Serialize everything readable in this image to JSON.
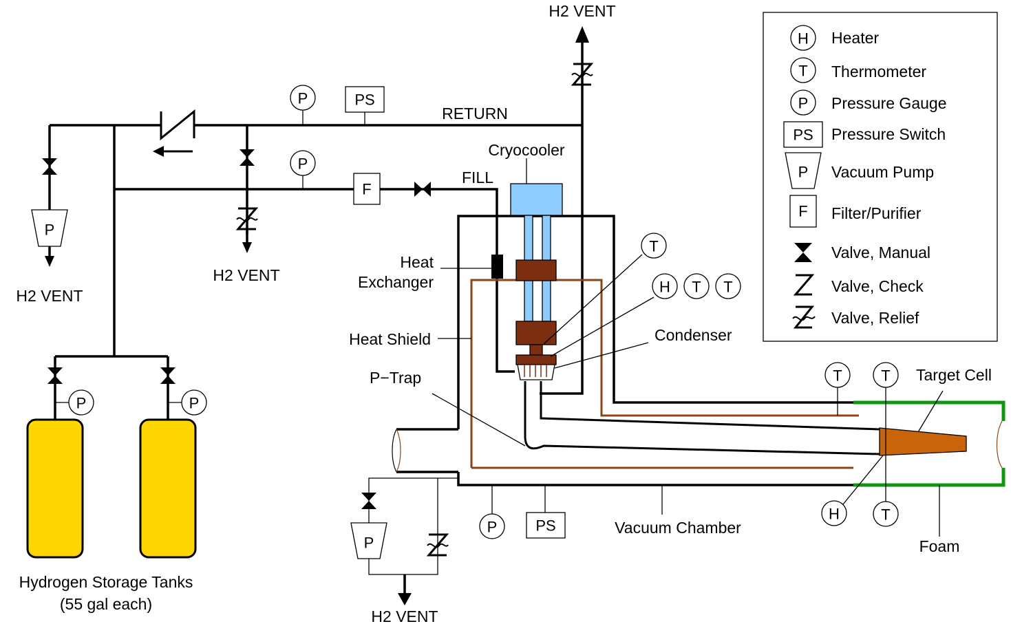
{
  "colors": {
    "tank": "#FFD700",
    "cryocooler": "#8ECCFF",
    "cryo_block": "#7B2E10",
    "shield": "#8B4513",
    "target_cell": "#C8640A",
    "foam": "#129612"
  },
  "labels": {
    "h2_vent_top": "H2 VENT",
    "h2_vent_left": "H2 VENT",
    "h2_vent_mid": "H2 VENT",
    "h2_vent_bottom": "H2 VENT",
    "return": "RETURN",
    "fill": "FILL",
    "cryocooler": "Cryocooler",
    "heat": "Heat",
    "exchanger": "Exchanger",
    "heat_shield": "Heat Shield",
    "condenser": "Condenser",
    "ptrap": "P−Trap",
    "target_cell": "Target Cell",
    "vacuum_chamber": "Vacuum Chamber",
    "foam": "Foam",
    "tanks_line1": "Hydrogen Storage Tanks",
    "tanks_line2": "(55 gal each)"
  },
  "symbols": {
    "P": "P",
    "PS": "PS",
    "F": "F",
    "T": "T",
    "H": "H"
  },
  "legend": [
    {
      "symbol": "H",
      "icon": "heater-icon",
      "label": "Heater"
    },
    {
      "symbol": "T",
      "icon": "thermometer-icon",
      "label": "Thermometer"
    },
    {
      "symbol": "P",
      "icon": "pressure-gauge-icon",
      "label": "Pressure Gauge"
    },
    {
      "symbol": "PS",
      "icon": "pressure-switch-icon",
      "label": "Pressure Switch"
    },
    {
      "symbol": "P",
      "icon": "vacuum-pump-icon",
      "label": "Vacuum Pump"
    },
    {
      "symbol": "F",
      "icon": "filter-purifier-icon",
      "label": "Filter/Purifier"
    },
    {
      "symbol": "",
      "icon": "manual-valve-icon",
      "label": "Valve, Manual"
    },
    {
      "symbol": "",
      "icon": "check-valve-icon",
      "label": "Valve, Check"
    },
    {
      "symbol": "",
      "icon": "relief-valve-icon",
      "label": "Valve, Relief"
    }
  ]
}
